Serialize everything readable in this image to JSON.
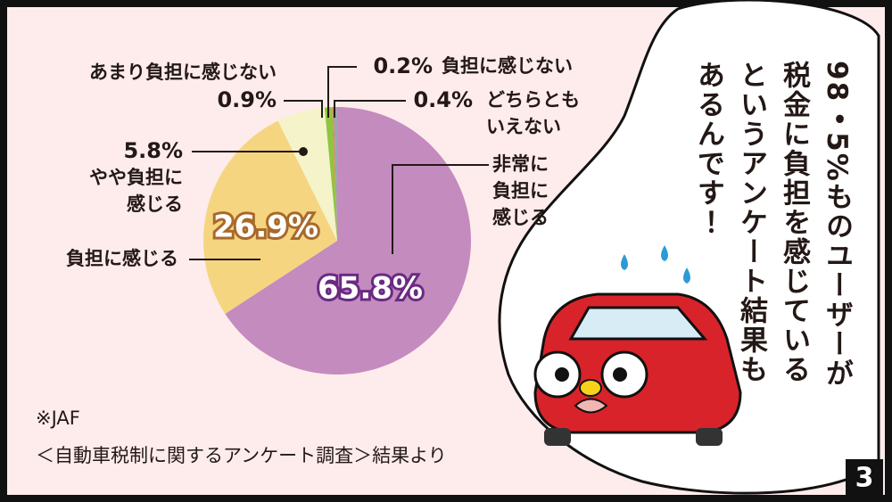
{
  "chart_data": {
    "type": "pie",
    "categories": [
      "非常に\n負担に\n感じる",
      "負担に感じる",
      "やや負担に\n感じる",
      "あまり負担に感じない",
      "負担に感じない",
      "どちらとも\nいえない"
    ],
    "values": [
      65.8,
      26.9,
      5.8,
      0.9,
      0.2,
      0.4
    ],
    "value_labels": [
      "65.8%",
      "26.9%",
      "5.8%",
      "0.9%",
      "0.2%",
      "0.4%"
    ],
    "colors": [
      "#c48bbf",
      "#f5d580",
      "#f5f3c9",
      "#8dc63f",
      "#e9805b",
      "#9ba6b1"
    ],
    "source": [
      "※JAF",
      "＜自動車税制に関するアンケート調査＞結果より"
    ]
  },
  "speech": [
    "98・5%ものユーザーが",
    "税金に負担を感じている",
    "というアンケート結果も",
    "あるんです！"
  ],
  "panel_number": "3"
}
